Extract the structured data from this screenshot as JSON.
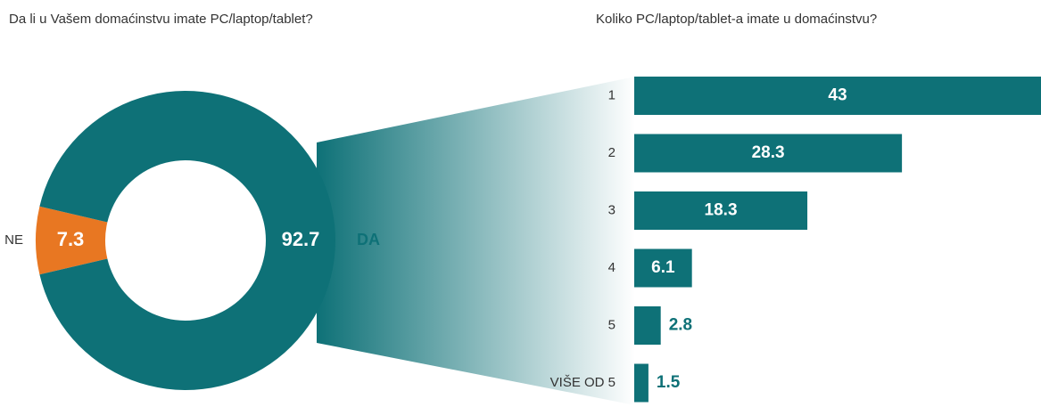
{
  "chart_data": [
    {
      "type": "donut",
      "title": "Da li u Vašem domaćinstvu imate PC/laptop/tablet?",
      "categories": [
        "NE",
        "DA"
      ],
      "values": [
        7.3,
        92.7
      ],
      "colors": [
        "#e87722",
        "#0e7177"
      ]
    },
    {
      "type": "barh",
      "title": "Koliko PC/laptop/tablet-a imate u domaćinstvu?",
      "categories": [
        "1",
        "2",
        "3",
        "4",
        "5",
        "VIŠE OD 5"
      ],
      "values": [
        43,
        28.3,
        18.3,
        6.1,
        2.8,
        1.5
      ],
      "color": "#0e7177"
    }
  ]
}
